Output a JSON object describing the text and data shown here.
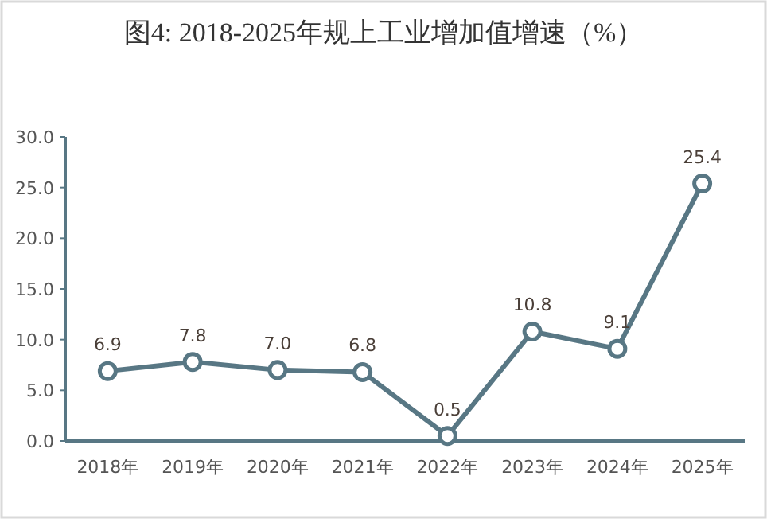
{
  "chart_data": {
    "type": "line",
    "title": "图4: 2018-2025年规上工业增加值增速（%）",
    "categories": [
      "2018年",
      "2019年",
      "2020年",
      "2021年",
      "2022年",
      "2023年",
      "2024年",
      "2025年"
    ],
    "values": [
      6.9,
      7.8,
      7.0,
      6.8,
      0.5,
      10.8,
      9.1,
      25.4
    ],
    "color": "#587784",
    "ylim": [
      0,
      30
    ],
    "yticks": [
      {
        "value": 0,
        "label": "0.0"
      },
      {
        "value": 5,
        "label": "5.0"
      },
      {
        "value": 10,
        "label": "10.0"
      },
      {
        "value": 15,
        "label": "15.0"
      },
      {
        "value": 20,
        "label": "20.0"
      },
      {
        "value": 25,
        "label": "25.0"
      },
      {
        "value": 30,
        "label": "30.0"
      }
    ],
    "value_labels": [
      "6.9",
      "7.8",
      "7.0",
      "6.8",
      "0.5",
      "10.8",
      "9.1",
      "25.4"
    ],
    "marker": "circle",
    "line_style": "solid"
  }
}
